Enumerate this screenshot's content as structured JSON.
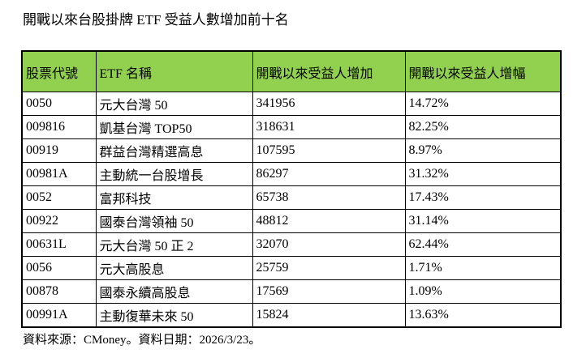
{
  "title": "開戰以來台股掛牌 ETF 受益人數增加前十名",
  "source_note": "資料來源：CMoney。資料日期：2026/3/23。",
  "colors": {
    "header_bg": "#92D050",
    "border": "#000000",
    "text": "#000000",
    "page_bg": "#FFFFFF"
  },
  "chart_data": {
    "type": "table",
    "title": "開戰以來台股掛牌 ETF 受益人數增加前十名",
    "columns": [
      "股票代號",
      "ETF 名稱",
      "開戰以來受益人增加",
      "開戰以來受益人增幅"
    ],
    "rows": [
      [
        "0050",
        "元大台灣 50",
        "341956",
        "14.72%"
      ],
      [
        "009816",
        "凱基台灣 TOP50",
        "318631",
        "82.25%"
      ],
      [
        "00919",
        "群益台灣精選高息",
        "107595",
        "8.97%"
      ],
      [
        "00981A",
        "主動統一台股增長",
        "86297",
        "31.32%"
      ],
      [
        "0052",
        "富邦科技",
        "65738",
        "17.43%"
      ],
      [
        "00922",
        "國泰台灣領袖 50",
        "48812",
        "31.14%"
      ],
      [
        "00631L",
        "元大台灣 50 正 2",
        "32070",
        "62.44%"
      ],
      [
        "0056",
        "元大高股息",
        "25759",
        "1.71%"
      ],
      [
        "00878",
        "國泰永續高股息",
        "17569",
        "1.09%"
      ],
      [
        "00991A",
        "主動復華未來 50",
        "15824",
        "13.63%"
      ]
    ],
    "source": "資料來源：CMoney。資料日期：2026/3/23。"
  }
}
